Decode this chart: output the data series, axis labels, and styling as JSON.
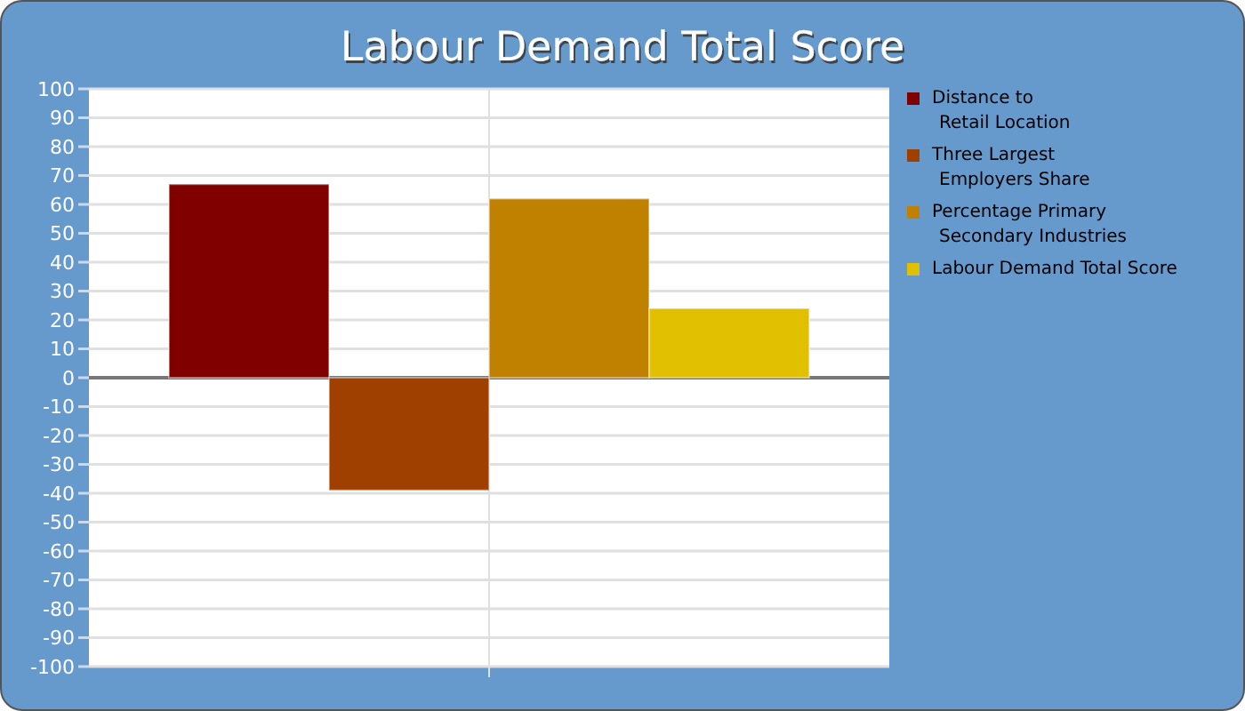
{
  "chart_data": {
    "type": "bar",
    "title": "Labour Demand Total Score",
    "categories": [
      null
    ],
    "series": [
      {
        "name": "Distance to\nRetail Location",
        "color": "#800000",
        "values": [
          67
        ]
      },
      {
        "name": "Three Largest\nEmployers Share",
        "color": "#a04000",
        "values": [
          -39
        ]
      },
      {
        "name": "Percentage Primary\nSecondary Industries",
        "color": "#c08000",
        "values": [
          62
        ]
      },
      {
        "name": "Labour Demand Total Score",
        "color": "#e0c000",
        "values": [
          24
        ]
      }
    ],
    "ylim": [
      -100,
      100
    ],
    "yticks": [
      -100,
      -90,
      -80,
      -70,
      -60,
      -50,
      -40,
      -30,
      -20,
      -10,
      0,
      10,
      20,
      30,
      40,
      50,
      60,
      70,
      80,
      90,
      100
    ],
    "grid": true,
    "legend": "right"
  }
}
